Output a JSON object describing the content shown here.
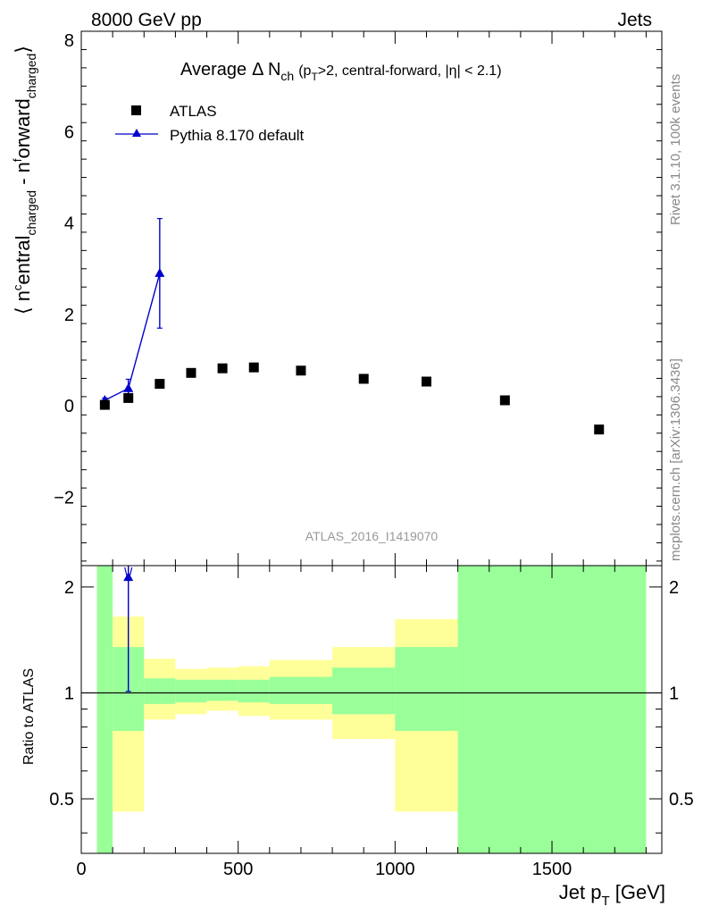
{
  "header": {
    "left": "8000 GeV pp",
    "right": "Jets"
  },
  "side_labels": {
    "rivet": "Rivet 3.1.10,  100k events",
    "mcplots": "mcplots.cern.ch [arXiv:1306.3436]"
  },
  "colors": {
    "mc": "#0000cc",
    "data": "#000000",
    "band_green": "#99ff99",
    "band_yellow": "#ffff99"
  },
  "chart_data": [
    {
      "type": "scatter",
      "title_main": "Average",
      "title_delta": "Δ N",
      "title_sub": "ch",
      "title_cut_pre": "(p",
      "title_cut_sub": "T",
      "title_cut_post": ">2, central-forward, |η| < 2.1)",
      "ylabel_open": "⟨ n",
      "ylabel_sup": "c",
      "ylabel_mid1": "entral",
      "ylabel_sub1": "charged",
      "ylabel_mid2": " - n",
      "ylabel_sup2": "f",
      "ylabel_mid3": "orward",
      "ylabel_sub2": "charged",
      "ylabel_close": "⟩",
      "watermark": "ATLAS_2016_I1419070",
      "xlim": [
        0,
        1850
      ],
      "ylim": [
        -3.5,
        8.2
      ],
      "yticks": [
        -2,
        0,
        2,
        4,
        6,
        8
      ],
      "ytick_labels": [
        "−2",
        "0",
        "2",
        "4",
        "6",
        "8"
      ],
      "legend_placement": "top-left",
      "series": [
        {
          "name": "ATLAS",
          "marker": "square",
          "x": [
            75,
            150,
            250,
            350,
            450,
            550,
            700,
            900,
            1100,
            1350,
            1650
          ],
          "y": [
            0.02,
            0.17,
            0.48,
            0.72,
            0.82,
            0.84,
            0.77,
            0.59,
            0.53,
            0.12,
            -0.52
          ]
        },
        {
          "name": "Pythia 8.170 default",
          "marker": "triangle",
          "x": [
            75,
            150,
            250
          ],
          "y": [
            0.12,
            0.38,
            2.9
          ],
          "yerr": [
            0.05,
            0.2,
            1.2
          ]
        }
      ]
    },
    {
      "type": "line",
      "ylabel": "Ratio to ATLAS",
      "xlabel_main": "Jet p",
      "xlabel_sub": "T",
      "xlabel_unit": " [GeV]",
      "xlim": [
        0,
        1850
      ],
      "ylim": [
        0.35,
        2.3
      ],
      "xticks": [
        0,
        500,
        1000,
        1500
      ],
      "xtick_labels": [
        "0",
        "500",
        "1000",
        "1500"
      ],
      "yticks": [
        0.5,
        1,
        2
      ],
      "ytick_labels": [
        "0.5",
        "1",
        "2"
      ],
      "bins": [
        {
          "x0": 50,
          "x1": 100,
          "g_lo": 0.35,
          "g_hi": 2.3,
          "y_lo": 0.35,
          "y_hi": 2.3
        },
        {
          "x0": 100,
          "x1": 200,
          "g_lo": 0.78,
          "g_hi": 1.35,
          "y_lo": 0.46,
          "y_hi": 1.65
        },
        {
          "x0": 200,
          "x1": 300,
          "g_lo": 0.93,
          "g_hi": 1.1,
          "y_lo": 0.84,
          "y_hi": 1.25
        },
        {
          "x0": 300,
          "x1": 400,
          "g_lo": 0.94,
          "g_hi": 1.09,
          "y_lo": 0.87,
          "y_hi": 1.17
        },
        {
          "x0": 400,
          "x1": 500,
          "g_lo": 0.95,
          "g_hi": 1.09,
          "y_lo": 0.89,
          "y_hi": 1.18
        },
        {
          "x0": 500,
          "x1": 600,
          "g_lo": 0.94,
          "g_hi": 1.09,
          "y_lo": 0.86,
          "y_hi": 1.19
        },
        {
          "x0": 600,
          "x1": 800,
          "g_lo": 0.93,
          "g_hi": 1.11,
          "y_lo": 0.84,
          "y_hi": 1.24
        },
        {
          "x0": 800,
          "x1": 1000,
          "g_lo": 0.87,
          "g_hi": 1.18,
          "y_lo": 0.74,
          "y_hi": 1.35
        },
        {
          "x0": 1000,
          "x1": 1200,
          "g_lo": 0.78,
          "g_hi": 1.35,
          "y_lo": 0.46,
          "y_hi": 1.62
        },
        {
          "x0": 1200,
          "x1": 1800,
          "g_lo": 0.35,
          "g_hi": 2.3,
          "y_lo": 0.35,
          "y_hi": 2.3
        }
      ],
      "mc_ratio": {
        "x": [
          150
        ],
        "y": [
          2.13
        ],
        "yerr_lo": [
          1.12
        ],
        "yerr_hi": [
          0.5
        ]
      }
    }
  ]
}
